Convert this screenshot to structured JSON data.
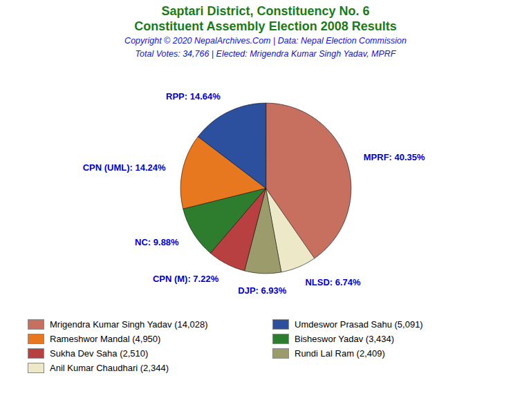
{
  "chart_data": {
    "type": "pie",
    "title": [
      "Saptari District, Constituency No. 6",
      "Constituent Assembly Election 2008 Results"
    ],
    "title_color": "#1a7a1a",
    "subtitle": [
      "Copyright © 2020 NepalArchives.Com | Data: Nepal Election Commission",
      "Total Votes: 34,766 | Elected: Mrigendra Kumar Singh Yadav, MPRF"
    ],
    "subtitle_color": "#1414c8",
    "categories": [
      "MPRF",
      "NLSD",
      "DJP",
      "CPN (M)",
      "NC",
      "CPN (UML)",
      "RPP"
    ],
    "values": [
      40.35,
      6.74,
      6.93,
      7.22,
      9.88,
      14.24,
      14.64
    ],
    "value_labels": [
      "MPRF: 40.35%",
      "NLSD: 6.74%",
      "DJP: 6.93%",
      "CPN (M): 7.22%",
      "NC: 9.88%",
      "CPN (UML): 14.24%",
      "RPP: 14.64%"
    ],
    "colors": [
      "#C87060",
      "#EDE8C8",
      "#9B9B6B",
      "#B84040",
      "#2E7D2E",
      "#E87820",
      "#2C4F9E"
    ],
    "data_labels": true,
    "label_color": "#0000CC",
    "legend": "bottom",
    "legend_entries": [
      {
        "label": "Mrigendra Kumar Singh Yadav (14,028)",
        "color": "#C87060"
      },
      {
        "label": "Rameshwor Mandal (4,950)",
        "color": "#E87820"
      },
      {
        "label": "Sukha Dev Saha (2,510)",
        "color": "#B84040"
      },
      {
        "label": "Anil Kumar Chaudhari (2,344)",
        "color": "#EDE8C8"
      },
      {
        "label": "Umdeswor Prasad Sahu (5,091)",
        "color": "#2C4F9E"
      },
      {
        "label": "Bisheswor Yadav (3,434)",
        "color": "#2E7D2E"
      },
      {
        "label": "Rundi Lal Ram (2,409)",
        "color": "#9B9B6B"
      }
    ]
  }
}
